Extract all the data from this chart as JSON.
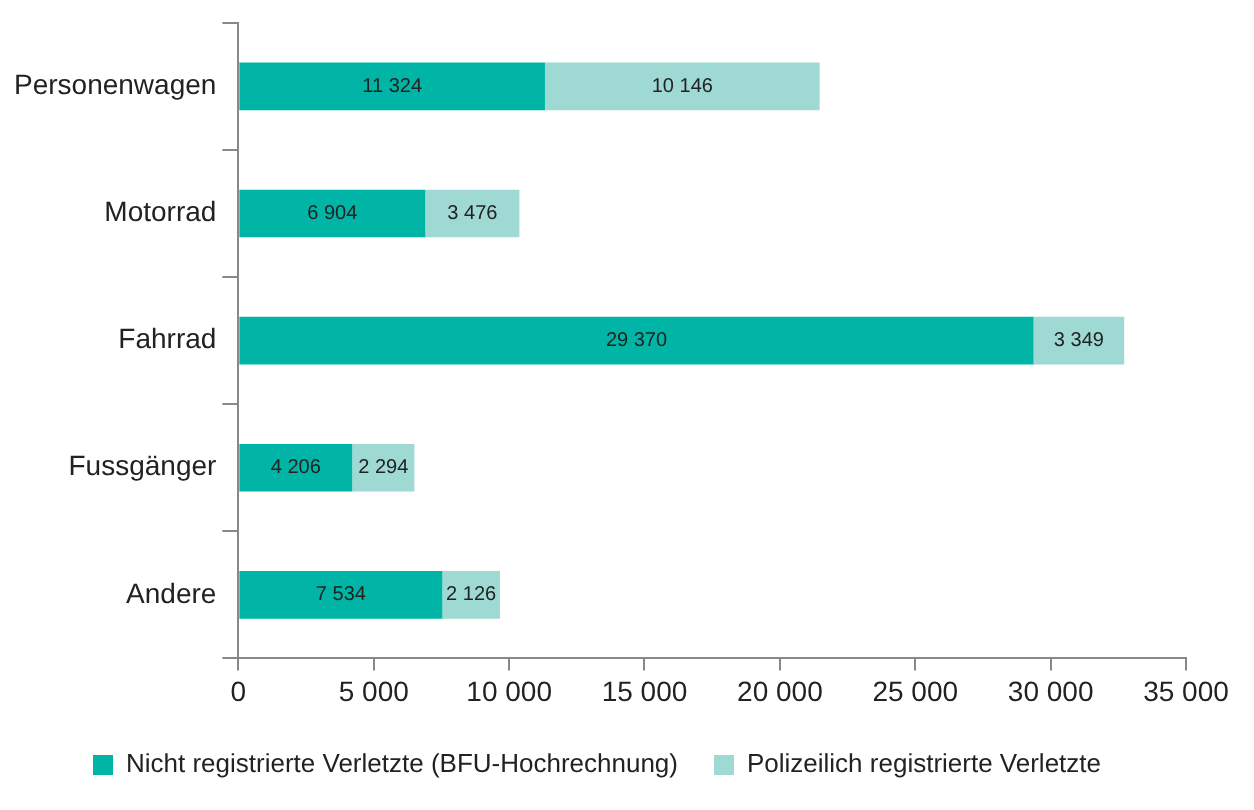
{
  "chart_data": {
    "type": "bar",
    "orientation": "horizontal",
    "stacked": true,
    "categories": [
      "Personenwagen",
      "Motorrad",
      "Fahrrad",
      "Fussgänger",
      "Andere"
    ],
    "series": [
      {
        "name": "Nicht registrierte Verletzte (BFU-Hochrechnung)",
        "color": "#00b5a5",
        "values": [
          11324,
          6904,
          29370,
          4206,
          7534
        ],
        "value_labels": [
          "11 324",
          "6 904",
          "29 370",
          "4 206",
          "7 534"
        ]
      },
      {
        "name": "Polizeilich registrierte Verletzte",
        "color": "#9ed9d3",
        "values": [
          10146,
          3476,
          3349,
          2294,
          2126
        ],
        "value_labels": [
          "10 146",
          "3 476",
          "3 349",
          "2 294",
          "2 126"
        ]
      }
    ],
    "xlim": [
      0,
      35000
    ],
    "xticks": [
      0,
      {
        "value": 5000,
        "label": "5 000"
      },
      {
        "value": 10000,
        "label": "10 000"
      },
      {
        "value": 15000,
        "label": "15 000"
      },
      {
        "value": 20000,
        "label": "20 000"
      },
      {
        "value": 25000,
        "label": "25 000"
      },
      {
        "value": 30000,
        "label": "30 000"
      },
      {
        "value": 35000,
        "label": "35 000"
      }
    ],
    "grid": false,
    "legend": "bottom"
  }
}
